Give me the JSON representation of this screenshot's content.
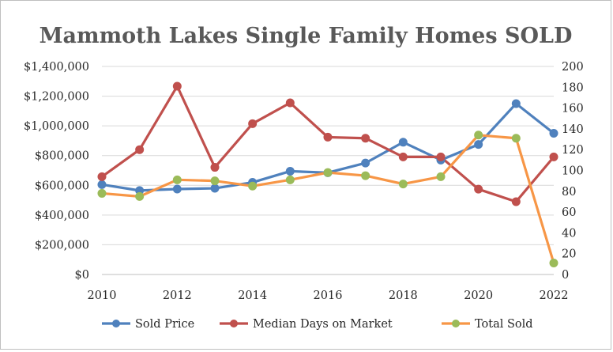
{
  "chart_data": {
    "type": "line",
    "title": "Mammoth Lakes Single Family Homes SOLD",
    "x": [
      2010,
      2011,
      2012,
      2013,
      2014,
      2015,
      2016,
      2017,
      2018,
      2019,
      2020,
      2021,
      2022
    ],
    "x_ticks": [
      "2010",
      "2012",
      "2014",
      "2016",
      "2018",
      "2020",
      "2022"
    ],
    "xlim": [
      2010,
      2022
    ],
    "y_left": {
      "lim": [
        0,
        1400000
      ],
      "ticks": [
        "$0",
        "$200,000",
        "$400,000",
        "$600,000",
        "$800,000",
        "$1,000,000",
        "$1,200,000",
        "$1,400,000"
      ]
    },
    "y_right": {
      "lim": [
        0,
        200
      ],
      "ticks": [
        "0",
        "20",
        "40",
        "60",
        "80",
        "100",
        "120",
        "140",
        "160",
        "180",
        "200"
      ]
    },
    "grid": true,
    "legend_position": "bottom",
    "series": [
      {
        "name": "Sold Price",
        "axis": "left",
        "color": "#4f81bd",
        "marker_color": "#4f81bd",
        "values": [
          605000,
          565000,
          575000,
          580000,
          620000,
          695000,
          685000,
          750000,
          890000,
          770000,
          875000,
          1150000,
          950000
        ]
      },
      {
        "name": "Median Days on Market",
        "axis": "right",
        "color": "#c0504d",
        "marker_color": "#c0504d",
        "values": [
          94,
          120,
          181,
          103,
          145,
          165,
          132,
          131,
          113,
          113,
          82,
          70,
          113
        ]
      },
      {
        "name": "Total Sold",
        "axis": "right",
        "color": "#f79646",
        "marker_color": "#9bbb59",
        "values": [
          78,
          75,
          91,
          90,
          85,
          91,
          98,
          95,
          87,
          94,
          134,
          131,
          11
        ]
      }
    ]
  }
}
